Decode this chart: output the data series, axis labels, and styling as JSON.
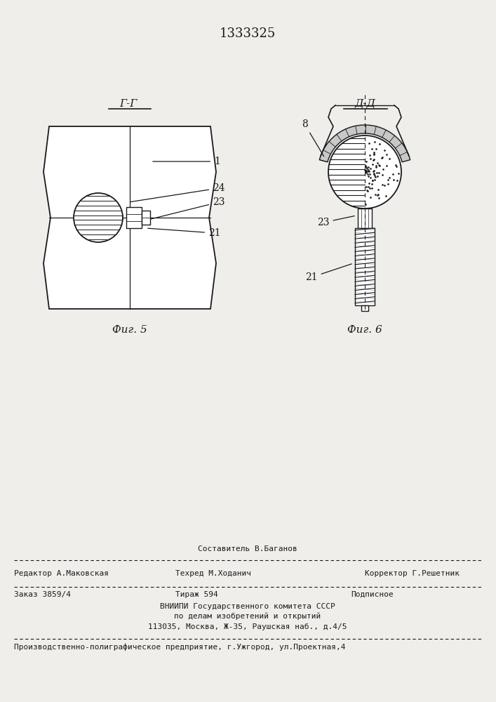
{
  "patent_number": "1333325",
  "fig5_label": "Г-Г",
  "fig6_label": "Д-Д",
  "fig5_caption": "Фиг. 5",
  "fig6_caption": "Фиг. 6",
  "footer_line1_center_top": "Составитель В.Баганов",
  "footer_line1_left": "Редактор А.Маковская",
  "footer_line1_center": "Техред М.Ходанич",
  "footer_line1_right": "Корректор Г.Решетник",
  "footer_line2_left": "Заказ 3859/4",
  "footer_line2_center": "Тираж 594",
  "footer_line2_right": "Подписное",
  "footer_line3": "ВНИИПИ Государственного комитета СССР",
  "footer_line4": "по делам изобретений и открытий",
  "footer_line5": "113035, Москва, Ж-35, Раушская наб., д.4/5",
  "footer_line6": "Производственно-полиграфическое предприятие, г.Ужгород, ул.Проектная,4",
  "bg_color": "#f0eeeb",
  "line_color": "#1a1a1a"
}
